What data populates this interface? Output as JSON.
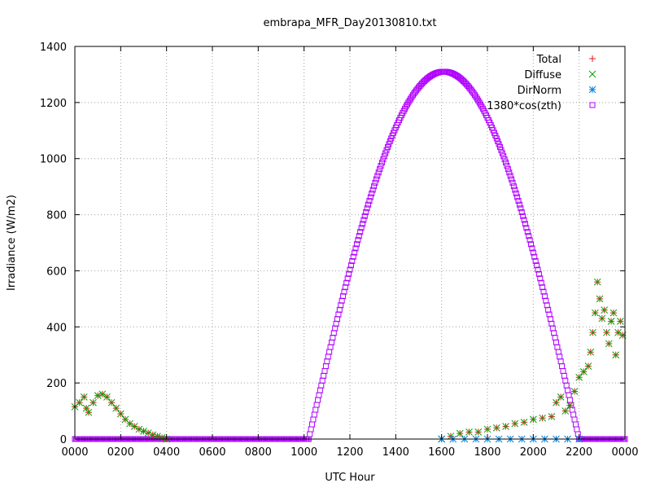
{
  "chart_data": {
    "type": "scatter",
    "title": "embrapa_MFR_Day20130810.txt",
    "xlabel": "UTC Hour",
    "ylabel": "Irradiance (W/m2)",
    "xlim": [
      0,
      2400
    ],
    "ylim": [
      0,
      1400
    ],
    "x_ticks": [
      "0000",
      "0200",
      "0400",
      "0600",
      "0800",
      "1000",
      "1200",
      "1400",
      "1600",
      "1800",
      "2000",
      "2200",
      "0000"
    ],
    "y_ticks": [
      "0",
      "200",
      "400",
      "600",
      "800",
      "1000",
      "1200",
      "1400"
    ],
    "grid": true,
    "legend_position": "top-right",
    "series": [
      {
        "name": "Total",
        "marker": "plus",
        "color": "#e41a1c",
        "points": [
          [
            0,
            115
          ],
          [
            20,
            130
          ],
          [
            40,
            150
          ],
          [
            50,
            110
          ],
          [
            60,
            95
          ],
          [
            80,
            130
          ],
          [
            100,
            155
          ],
          [
            120,
            160
          ],
          [
            140,
            150
          ],
          [
            160,
            130
          ],
          [
            180,
            110
          ],
          [
            200,
            90
          ],
          [
            220,
            70
          ],
          [
            240,
            55
          ],
          [
            260,
            45
          ],
          [
            280,
            35
          ],
          [
            300,
            28
          ],
          [
            320,
            22
          ],
          [
            340,
            15
          ],
          [
            360,
            10
          ],
          [
            380,
            5
          ],
          [
            400,
            0
          ],
          [
            1600,
            0
          ],
          [
            1640,
            10
          ],
          [
            1680,
            20
          ],
          [
            1720,
            25
          ],
          [
            1760,
            25
          ],
          [
            1800,
            35
          ],
          [
            1840,
            40
          ],
          [
            1880,
            45
          ],
          [
            1920,
            55
          ],
          [
            1960,
            60
          ],
          [
            2000,
            70
          ],
          [
            2040,
            75
          ],
          [
            2080,
            80
          ],
          [
            2100,
            130
          ],
          [
            2120,
            150
          ],
          [
            2140,
            100
          ],
          [
            2160,
            120
          ],
          [
            2180,
            170
          ],
          [
            2200,
            220
          ],
          [
            2220,
            240
          ],
          [
            2240,
            260
          ],
          [
            2250,
            310
          ],
          [
            2260,
            380
          ],
          [
            2270,
            450
          ],
          [
            2280,
            560
          ],
          [
            2290,
            500
          ],
          [
            2300,
            430
          ],
          [
            2310,
            460
          ],
          [
            2320,
            380
          ],
          [
            2330,
            340
          ],
          [
            2340,
            420
          ],
          [
            2350,
            450
          ],
          [
            2360,
            300
          ],
          [
            2370,
            380
          ],
          [
            2380,
            420
          ],
          [
            2390,
            370
          ]
        ]
      },
      {
        "name": "Diffuse",
        "marker": "cross",
        "color": "#00a000",
        "points": [
          [
            0,
            115
          ],
          [
            20,
            130
          ],
          [
            40,
            150
          ],
          [
            50,
            110
          ],
          [
            60,
            95
          ],
          [
            80,
            130
          ],
          [
            100,
            155
          ],
          [
            120,
            160
          ],
          [
            140,
            150
          ],
          [
            160,
            130
          ],
          [
            180,
            110
          ],
          [
            200,
            90
          ],
          [
            220,
            70
          ],
          [
            240,
            55
          ],
          [
            260,
            45
          ],
          [
            280,
            35
          ],
          [
            300,
            28
          ],
          [
            320,
            22
          ],
          [
            340,
            15
          ],
          [
            360,
            10
          ],
          [
            380,
            5
          ],
          [
            400,
            0
          ],
          [
            1600,
            0
          ],
          [
            1640,
            10
          ],
          [
            1680,
            20
          ],
          [
            1720,
            25
          ],
          [
            1760,
            25
          ],
          [
            1800,
            35
          ],
          [
            1840,
            40
          ],
          [
            1880,
            45
          ],
          [
            1920,
            55
          ],
          [
            1960,
            60
          ],
          [
            2000,
            70
          ],
          [
            2040,
            75
          ],
          [
            2080,
            80
          ],
          [
            2100,
            130
          ],
          [
            2120,
            150
          ],
          [
            2140,
            100
          ],
          [
            2160,
            120
          ],
          [
            2180,
            170
          ],
          [
            2200,
            220
          ],
          [
            2220,
            240
          ],
          [
            2240,
            260
          ],
          [
            2250,
            310
          ],
          [
            2260,
            380
          ],
          [
            2270,
            450
          ],
          [
            2280,
            560
          ],
          [
            2290,
            500
          ],
          [
            2300,
            430
          ],
          [
            2310,
            460
          ],
          [
            2320,
            380
          ],
          [
            2330,
            340
          ],
          [
            2340,
            420
          ],
          [
            2350,
            450
          ],
          [
            2360,
            300
          ],
          [
            2370,
            380
          ],
          [
            2380,
            420
          ],
          [
            2390,
            370
          ]
        ]
      },
      {
        "name": "DirNorm",
        "marker": "star",
        "color": "#0080e0",
        "points": [
          [
            1600,
            0
          ],
          [
            1650,
            0
          ],
          [
            1700,
            0
          ],
          [
            1750,
            0
          ],
          [
            1800,
            0
          ],
          [
            1850,
            0
          ],
          [
            1900,
            0
          ],
          [
            1950,
            0
          ],
          [
            2000,
            0
          ],
          [
            2050,
            0
          ],
          [
            2100,
            0
          ],
          [
            2150,
            0
          ],
          [
            2200,
            0
          ]
        ]
      },
      {
        "name": "1380*cos(zth)",
        "marker": "square",
        "color": "#b000ff",
        "formula": "cos"
      }
    ]
  }
}
